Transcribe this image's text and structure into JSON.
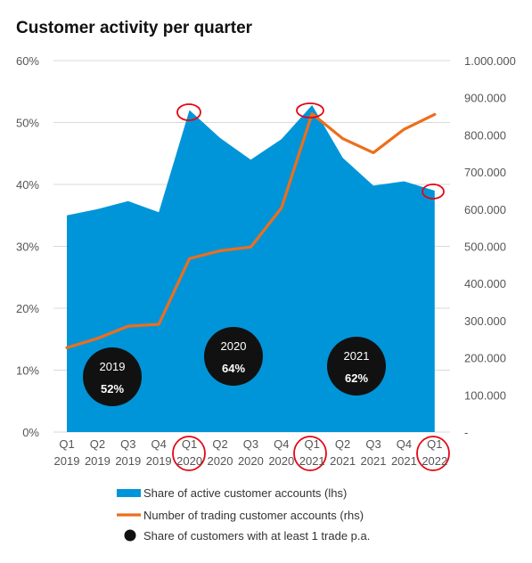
{
  "chart_data": {
    "type": "area",
    "title": "Customer activity per quarter",
    "categories": [
      [
        "Q1",
        "2019"
      ],
      [
        "Q2",
        "2019"
      ],
      [
        "Q3",
        "2019"
      ],
      [
        "Q4",
        "2019"
      ],
      [
        "Q1",
        "2020"
      ],
      [
        "Q2",
        "2020"
      ],
      [
        "Q3",
        "2020"
      ],
      [
        "Q4",
        "2020"
      ],
      [
        "Q1",
        "2021"
      ],
      [
        "Q2",
        "2021"
      ],
      [
        "Q3",
        "2021"
      ],
      [
        "Q4",
        "2021"
      ],
      [
        "Q1",
        "2022"
      ]
    ],
    "left_axis": {
      "range": [
        0,
        60
      ],
      "ticks": [
        0,
        10,
        20,
        30,
        40,
        50,
        60
      ],
      "tick_labels": [
        "0%",
        "10%",
        "20%",
        "30%",
        "40%",
        "50%",
        "60%"
      ]
    },
    "right_axis": {
      "range": [
        0,
        1000000
      ],
      "ticks": [
        0,
        100000,
        200000,
        300000,
        400000,
        500000,
        600000,
        700000,
        800000,
        900000,
        1000000
      ],
      "tick_labels": [
        "-",
        "100.000",
        "200.000",
        "300.000",
        "400.000",
        "500.000",
        "600.000",
        "700.000",
        "800.000",
        "900.000",
        "1.000.000"
      ]
    },
    "grid": true,
    "legend_position": "bottom",
    "series": [
      {
        "name": "Share of active customer accounts (lhs)",
        "type": "area",
        "axis": "left",
        "color": "#0095D9",
        "values": [
          35,
          36,
          37.3,
          35.5,
          52,
          47.5,
          44,
          47.3,
          52.8,
          44.3,
          39.8,
          40.5,
          39
        ]
      },
      {
        "name": "Number of trading customer accounts (rhs)",
        "type": "line",
        "axis": "right",
        "color": "#ED6E1B",
        "values": [
          227000,
          252000,
          285000,
          290000,
          467000,
          488000,
          498000,
          603000,
          857000,
          790000,
          752000,
          815000,
          855000
        ]
      }
    ],
    "bubbles": {
      "name": "Share of customers with at least 1 trade p.a.",
      "color": "#111111",
      "items": [
        {
          "year": "2019",
          "value": "52%"
        },
        {
          "year": "2020",
          "value": "64%"
        },
        {
          "year": "2021",
          "value": "62%"
        }
      ]
    },
    "highlight_color": "#E30613"
  }
}
